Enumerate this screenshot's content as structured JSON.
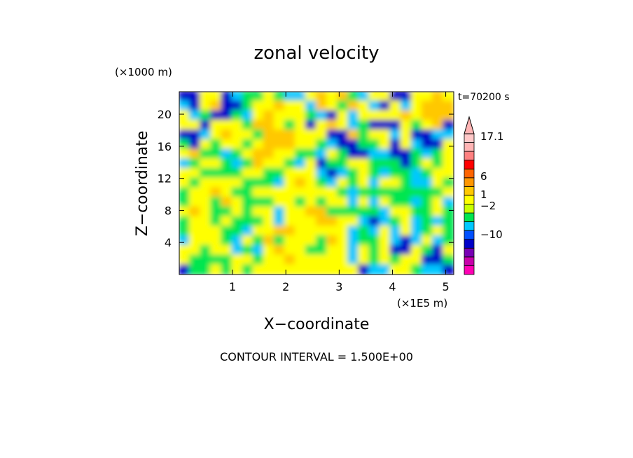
{
  "chart_data": {
    "type": "heatmap",
    "title": "zonal velocity",
    "time_label": "t=70200 s",
    "xlabel": "X−coordinate",
    "ylabel": "Z−coordinate",
    "x_units": "(×1E5 m)",
    "y_units": "(×1000 m)",
    "xlim": [
      0,
      5.15
    ],
    "ylim": [
      0,
      22.8
    ],
    "x_ticks": [
      "1",
      "2",
      "3",
      "4",
      "5"
    ],
    "x_tick_values": [
      1,
      2,
      3,
      4,
      5
    ],
    "y_ticks": [
      "4",
      "8",
      "12",
      "16",
      "20"
    ],
    "y_tick_values": [
      4,
      8,
      12,
      16,
      20
    ],
    "footer": "CONTOUR INTERVAL = 1.500E+00",
    "colorbar": {
      "labels": [
        "17.1",
        "6",
        "1",
        "−2",
        "−10"
      ],
      "colors": [
        "#ff00b4",
        "#c800aa",
        "#7800b4",
        "#0000c8",
        "#0050ff",
        "#00c8ff",
        "#00e650",
        "#c8ff00",
        "#ffff00",
        "#ffc800",
        "#ff9600",
        "#ff6400",
        "#ff0000",
        "#ff8080",
        "#ffb4b4",
        "#ffc8c8"
      ],
      "extend_top": "#ffb4b4"
    },
    "field_grid": [
      "BBYYBCGGYGCCYOYOGCYYBBYYOY",
      "CBYOBBGYYOYYCOYGOYCBYCYOOO",
      "YCGBBGCYOYYYGCBYCYYYYOYOOO",
      "YYBYYYGOOYGYBYOYCGBBBYGYOB",
      "BBCYOYYGOOOYYYBBOGYYCYBBCC",
      "GBYGYYGYOOOYYGCBBGGYBYCBBY",
      "YOGGCGYOOYYGGCYGBBCCBBGCGY",
      "CGYYGCGOYYGCYBGGYYGGGBGYGY",
      "YYGGGGYYGGYYYCBCGYGCGGCGYY",
      "YGYYYYGGGCYOYGCYGYCYYGCCYG",
      "GYYOYGGYYYYYYYYGCGGGGGGGGY",
      "GYYGOYGGGYYGYGYYCYCYGGCGYC",
      "YOYGGYGYYCYYOOGGGGGCYYGGYG",
      "GYYGYGGGYCYYYOOYYCBCGYCGCG",
      "GYYYGGCYYOOYYYYYCGCYCYCGYG",
      "CYYYGCYGOGYYYGOYCGGYCBCYCG",
      "YYGYYCGCYOYYGGYYCYGYBBYGBY",
      "YGGGGYYGYYOYYYYYCYGYGYYBBG",
      "BGGYGYGYYYYYYYYYYBCCYYGCCB"
    ],
    "field_colors": {
      "B": "#0000c8",
      "C": "#00c8ff",
      "G": "#00e650",
      "Y": "#ffff00",
      "O": "#ffc800"
    }
  }
}
